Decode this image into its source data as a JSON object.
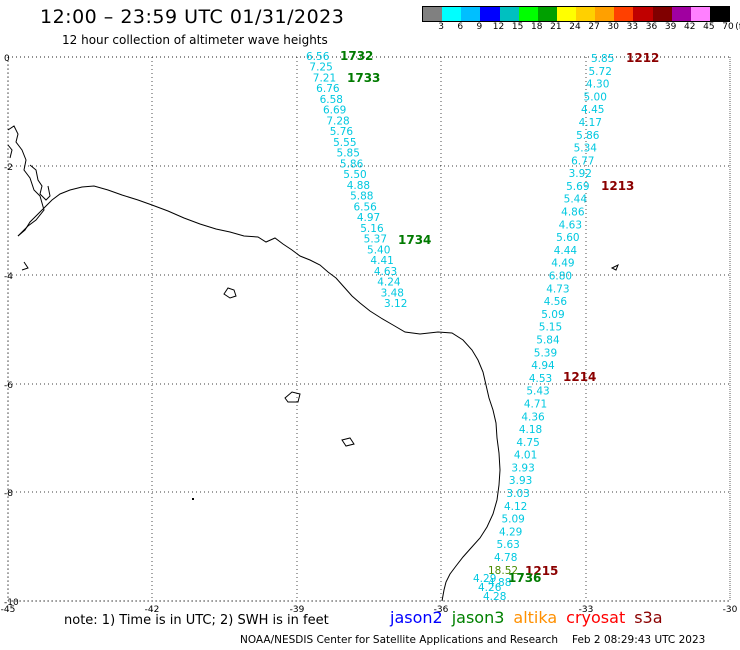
{
  "header": {
    "title": "12:00 – 23:59 UTC 01/31/2023",
    "subtitle": "12 hour collection of altimeter wave heights"
  },
  "legend": {
    "unit": "(ft)",
    "labels": [
      "3",
      "6",
      "9",
      "12",
      "15",
      "18",
      "21",
      "24",
      "27",
      "30",
      "33",
      "36",
      "39",
      "42",
      "45",
      "70"
    ],
    "colors": [
      "#808080",
      "#00ffff",
      "#00bfff",
      "#0000ff",
      "#00c0c0",
      "#00ff00",
      "#00a000",
      "#ffff00",
      "#ffd000",
      "#ffa000",
      "#ff4000",
      "#c00000",
      "#800000",
      "#a000a0",
      "#ff80ff",
      "#000000"
    ]
  },
  "axes": {
    "x_labels": [
      "-45",
      "-42",
      "-39",
      "-36",
      "-33",
      "-30"
    ],
    "y_labels": [
      "0",
      "-2",
      "-4",
      "-6",
      "-8",
      "-10"
    ]
  },
  "tracks": [
    {
      "values": [
        "6.56",
        "7.25",
        "7.21",
        "6.76",
        "6.58",
        "6.69",
        "7.28",
        "5.76",
        "5.55",
        "5.85",
        "5.86",
        "5.50",
        "4.88",
        "5.88",
        "6.56",
        "4.97",
        "5.16",
        "5.37",
        "5.40",
        "4.41",
        "4.63",
        "4.24",
        "3.48",
        "3.12"
      ],
      "times": [
        "1732",
        "1733",
        "1734"
      ],
      "time_color": "#007a00"
    },
    {
      "values": [
        "5.85",
        "5.72",
        "4.30",
        "5.00",
        "4.45",
        "4.17",
        "5.86",
        "5.34",
        "6.77",
        "3.92",
        "5.69",
        "5.44",
        "4.86",
        "4.63",
        "5.60",
        "4.44",
        "4.49",
        "6.80",
        "4.73",
        "4.56",
        "5.09",
        "5.15",
        "5.84",
        "5.39",
        "4.94",
        "4.53",
        "5.43",
        "4.71",
        "4.36",
        "4.18",
        "4.75",
        "4.01",
        "3.93",
        "3.93",
        "3.03",
        "4.12",
        "5.09",
        "4.29",
        "5.63",
        "4.78",
        "18.52",
        "4.29",
        "4.26",
        "4.88",
        "4.28"
      ],
      "times": [
        "1212",
        "1213",
        "1214",
        "1215"
      ],
      "time_color": "#8b0000"
    },
    {
      "times": [
        "1736"
      ],
      "time_color": "#007a00"
    }
  ],
  "footer": {
    "note": "note: 1) Time is in UTC; 2) SWH is in feet",
    "missions": [
      {
        "name": "jason2",
        "color": "#0000ff"
      },
      {
        "name": "jason3",
        "color": "#008000"
      },
      {
        "name": "altika",
        "color": "#ff9000"
      },
      {
        "name": "cryosat",
        "color": "#ff0000"
      },
      {
        "name": "s3a",
        "color": "#8b0000"
      }
    ],
    "credit_org": "NOAA/NESDIS Center for Satellite Applications and Research",
    "credit_time": "Feb  2 08:29:43 UTC 2023"
  }
}
